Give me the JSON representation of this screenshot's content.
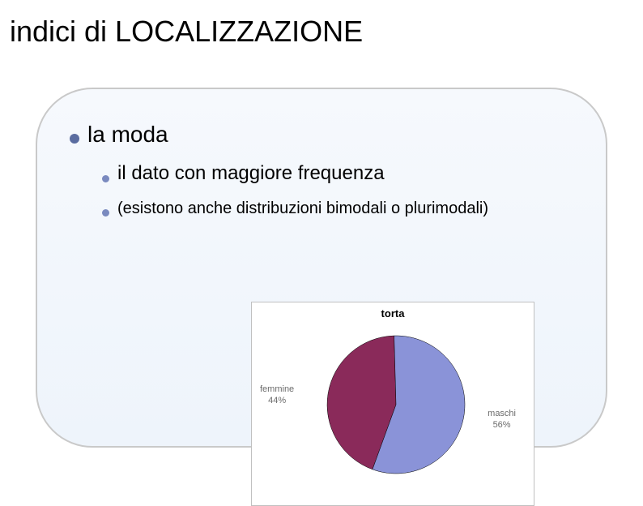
{
  "title": "indici di LOCALIZZAZIONE",
  "bullets": {
    "level1": {
      "text": "la moda",
      "bullet_color": "#5a6ca0"
    },
    "level2a": {
      "text": "il dato con maggiore frequenza",
      "bullet_color": "#7a8abf"
    },
    "level2b": {
      "text": "(esistono anche distribuzioni bimodali o plurimodali)",
      "bullet_color": "#7a8abf"
    }
  },
  "chart": {
    "type": "pie",
    "title": "torta",
    "title_fontsize": 13,
    "background_color": "#ffffff",
    "border_color": "#c0c0c0",
    "radius": 85,
    "slices": [
      {
        "label": "femmine",
        "percent": 44,
        "color": "#8a2a5a",
        "label_pos": "left"
      },
      {
        "label": "maschi",
        "percent": 56,
        "color": "#8a93d8",
        "label_pos": "right"
      }
    ],
    "label_color": "#6b6b6b",
    "label_fontsize": 11
  },
  "box": {
    "border_color": "#c9c9c9",
    "bg_gradient_top": "#f6f9fd",
    "bg_gradient_bottom": "#eef4fb",
    "border_radius": 70
  }
}
